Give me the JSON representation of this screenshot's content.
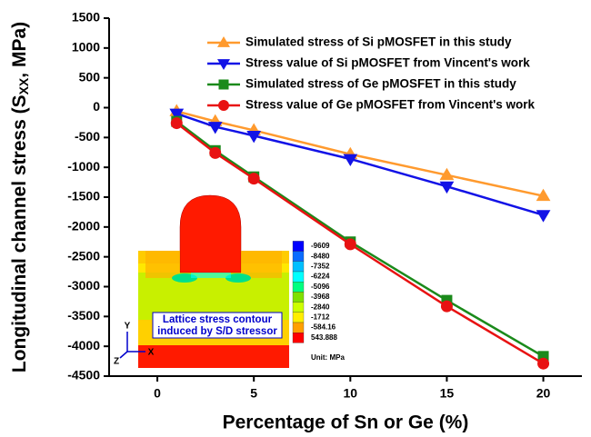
{
  "chart_data": {
    "type": "line",
    "xlabel": "Percentage of Sn or Ge (%)",
    "ylabel": [
      "Longitudinal channel stress (S",
      "XX",
      ", MPa)"
    ],
    "xlim": [
      -2.5,
      22
    ],
    "xticks": [
      0,
      5,
      10,
      15,
      20
    ],
    "ylim": [
      -4500,
      1500
    ],
    "yticks": [
      1500,
      1000,
      500,
      0,
      -500,
      -1000,
      -1500,
      -2000,
      -2500,
      -3000,
      -3500,
      -4000,
      -4500
    ],
    "x": [
      1,
      3,
      5,
      10,
      15,
      20
    ],
    "legend": "upper right",
    "series": [
      {
        "name": "Simulated stress of Si pMOSFET in this study",
        "color": "#ff9a2e",
        "marker": "triangle-up",
        "values": [
          -60,
          -230,
          -380,
          -780,
          -1130,
          -1480
        ]
      },
      {
        "name": "Stress value of Si pMOSFET from Vincent's work",
        "color": "#1212e6",
        "marker": "triangle-down",
        "values": [
          -100,
          -320,
          -470,
          -860,
          -1320,
          -1800
        ]
      },
      {
        "name": "Simulated stress of Ge pMOSFET in this study",
        "color": "#1b8a1b",
        "marker": "square",
        "values": [
          -230,
          -720,
          -1160,
          -2250,
          -3230,
          -4170
        ]
      },
      {
        "name": "Stress value of Ge pMOSFET from Vincent's work",
        "color": "#e81212",
        "marker": "circle",
        "values": [
          -260,
          -760,
          -1190,
          -2290,
          -3330,
          -4290
        ]
      }
    ],
    "inset": {
      "contour_labels": [
        "-9609",
        "-8480",
        "-7352",
        "-6224",
        "-5096",
        "-3968",
        "-2840",
        "-1712",
        "-584.16",
        "543.888"
      ],
      "contour_colors": [
        "#0000ff",
        "#0a6cff",
        "#00bfff",
        "#00ffff",
        "#00ff80",
        "#7fe000",
        "#ccff00",
        "#ffee00",
        "#ffa000",
        "#ff0000"
      ],
      "unit": "Unit: MPa",
      "caption": [
        "Lattice stress contour",
        "induced by S/D stressor"
      ],
      "axes": [
        "Y",
        "Z",
        "X"
      ]
    }
  }
}
